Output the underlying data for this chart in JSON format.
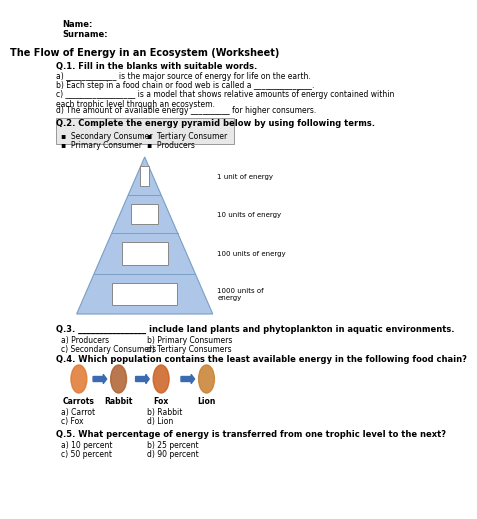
{
  "title": "The Flow of Energy in an Ecosystem (Worksheet)",
  "bg_color": "#ffffff",
  "name_label": "Name:",
  "surname_label": "Surname:",
  "q1_header": "Q.1. Fill in the blanks with suitable words.",
  "q1_a": "a) _____________ is the major source of energy for life on the earth.",
  "q1_b": "b) Each step in a food chain or food web is called a _______________.",
  "q1_c": "c) __________________ is a model that shows relative amounts of energy contained within\neach trophic level through an ecosystem.",
  "q1_d": "d) The amount of available energy __________ for higher consumers.",
  "q2_header": "Q.2. Complete the energy pyramid below by using following terms.",
  "q2_terms": [
    "Secondary Consumer",
    "Tertiary Consumer",
    "Primary Consumer",
    "Producers"
  ],
  "pyramid_labels": [
    "1 unit of energy",
    "10 units of energy",
    "100 units of energy",
    "1000 units of\nenergy"
  ],
  "pyramid_color": "#aec6e8",
  "pyramid_box_color": "#ffffff",
  "q3_header": "Q.3. ________________ include land plants and phytoplankton in aquatic environments.",
  "q3_a": "a) Producers",
  "q3_b": "b) Primary Consumers",
  "q3_c": "c) Secondary Consumers",
  "q3_d": "d) Tertiary Consumers",
  "q4_header": "Q.4. Which population contains the least available energy in the following food chain?",
  "q4_animals": [
    "Carrots",
    "Rabbit",
    "Fox",
    "Lion"
  ],
  "q4_a": "a) Carrot",
  "q4_b": "b) Rabbit",
  "q4_c": "c) Fox",
  "q4_d": "d) Lion",
  "q5_header": "Q.5. What percentage of energy is transferred from one trophic level to the next?",
  "q5_a": "a) 10 percent",
  "q5_b": "b) 25 percent",
  "q5_c": "c) 50 percent",
  "q5_d": "d) 90 percent",
  "arrow_color": "#3a6bb0",
  "box_border_color": "#aaaaaa",
  "terms_bg": "#e8e8e8"
}
